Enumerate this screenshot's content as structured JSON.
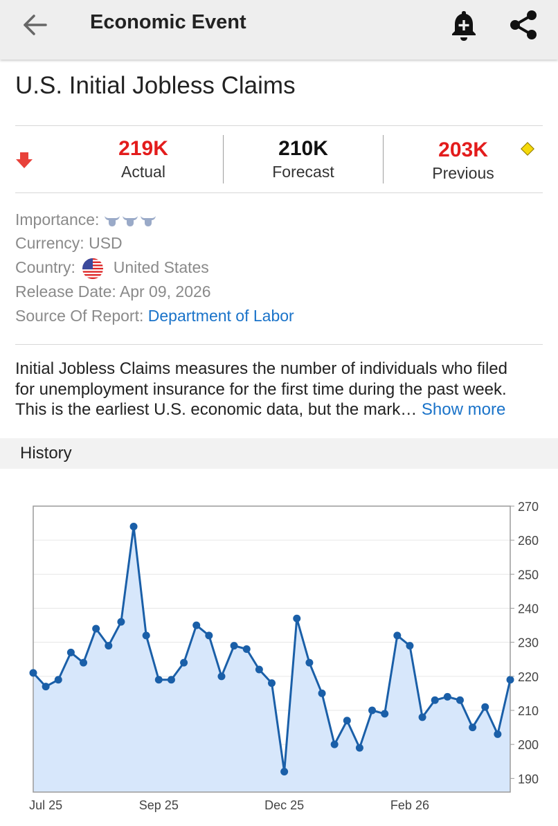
{
  "appbar": {
    "title": "Economic Event",
    "back_icon": "back-arrow-icon",
    "bell_icon": "add-alert-icon",
    "share_icon": "share-icon"
  },
  "event": {
    "title": "U.S. Initial Jobless Claims"
  },
  "stats": {
    "trend_icon": "down-arrow-icon",
    "actual": {
      "value": "219K",
      "label": "Actual",
      "color": "#e31c1c"
    },
    "forecast": {
      "value": "210K",
      "label": "Forecast",
      "color": "#111111"
    },
    "previous": {
      "value": "203K",
      "label": "Previous",
      "color": "#e31c1c"
    },
    "revised_icon": "revised-diamond-icon"
  },
  "info": {
    "importance_label": "Importance:",
    "importance_level": 3,
    "currency_label": "Currency:",
    "currency_value": "USD",
    "country_label": "Country:",
    "country_value": "United States",
    "release_label": "Release Date:",
    "release_value": "Apr 09, 2026",
    "source_label": "Source Of Report:",
    "source_value": "Department of Labor"
  },
  "description": {
    "line1": "Initial Jobless Claims measures the number of individuals who filed",
    "line2": "for unemployment insurance for the first time during the past week.",
    "line3": "This is the earliest U.S. economic data, but the mark…",
    "show_more": "Show more"
  },
  "history": {
    "label": "History"
  },
  "chart_data": {
    "type": "area",
    "title": "",
    "xlabel": "",
    "ylabel": "",
    "ylim": [
      186,
      270
    ],
    "yticks": [
      190,
      200,
      210,
      220,
      230,
      240,
      250,
      260,
      270
    ],
    "xtick_labels": [
      "Jul 25",
      "Sep 25",
      "Dec 25",
      "Feb 26"
    ],
    "xtick_index": [
      1,
      10,
      20,
      30
    ],
    "series": [
      {
        "name": "Initial Jobless Claims (K)",
        "values": [
          221,
          217,
          219,
          227,
          224,
          234,
          229,
          236,
          264,
          232,
          219,
          219,
          224,
          235,
          232,
          220,
          229,
          228,
          222,
          218,
          192,
          237,
          224,
          215,
          200,
          207,
          199,
          210,
          209,
          232,
          229,
          208,
          213,
          214,
          213,
          205,
          211,
          203,
          219
        ]
      }
    ],
    "line_color": "#1a5fa8",
    "fill_color": "#d7e7fb"
  }
}
